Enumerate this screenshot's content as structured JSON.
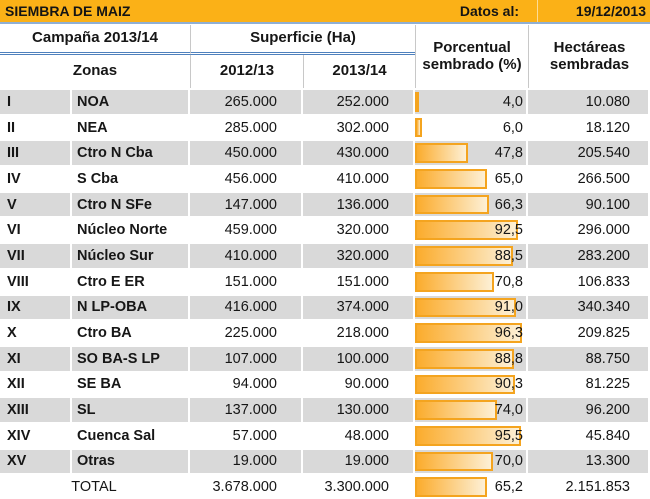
{
  "title_bar": {
    "title": "SIEMBRA DE MAIZ",
    "date_label": "Datos al:",
    "date_value": "19/12/2013"
  },
  "header": {
    "campaign": "Campaña 2013/14",
    "surface": "Superficie (Ha)",
    "pct_planted": "Porcentual sembrado (%)",
    "ha_planted": "Hectáreas sembradas",
    "zones": "Zonas",
    "season_prev": "2012/13",
    "season_curr": "2013/14"
  },
  "rows": [
    {
      "num": "I",
      "zone": "NOA",
      "prev": "265.000",
      "curr": "252.000",
      "pct": "4,0",
      "pct_value": 4.0,
      "ha": "10.080"
    },
    {
      "num": "II",
      "zone": "NEA",
      "prev": "285.000",
      "curr": "302.000",
      "pct": "6,0",
      "pct_value": 6.0,
      "ha": "18.120"
    },
    {
      "num": "III",
      "zone": "Ctro N Cba",
      "prev": "450.000",
      "curr": "430.000",
      "pct": "47,8",
      "pct_value": 47.8,
      "ha": "205.540"
    },
    {
      "num": "IV",
      "zone": "S Cba",
      "prev": "456.000",
      "curr": "410.000",
      "pct": "65,0",
      "pct_value": 65.0,
      "ha": "266.500"
    },
    {
      "num": "V",
      "zone": "Ctro N SFe",
      "prev": "147.000",
      "curr": "136.000",
      "pct": "66,3",
      "pct_value": 66.3,
      "ha": "90.100"
    },
    {
      "num": "VI",
      "zone": "Núcleo Norte",
      "prev": "459.000",
      "curr": "320.000",
      "pct": "92,5",
      "pct_value": 92.5,
      "ha": "296.000"
    },
    {
      "num": "VII",
      "zone": "Núcleo Sur",
      "prev": "410.000",
      "curr": "320.000",
      "pct": "88,5",
      "pct_value": 88.5,
      "ha": "283.200"
    },
    {
      "num": "VIII",
      "zone": "Ctro E ER",
      "prev": "151.000",
      "curr": "151.000",
      "pct": "70,8",
      "pct_value": 70.8,
      "ha": "106.833"
    },
    {
      "num": "IX",
      "zone": "N LP-OBA",
      "prev": "416.000",
      "curr": "374.000",
      "pct": "91,0",
      "pct_value": 91.0,
      "ha": "340.340"
    },
    {
      "num": "X",
      "zone": "Ctro BA",
      "prev": "225.000",
      "curr": "218.000",
      "pct": "96,3",
      "pct_value": 96.3,
      "ha": "209.825"
    },
    {
      "num": "XI",
      "zone": "SO BA-S LP",
      "prev": "107.000",
      "curr": "100.000",
      "pct": "88,8",
      "pct_value": 88.8,
      "ha": "88.750"
    },
    {
      "num": "XII",
      "zone": "SE BA",
      "prev": "94.000",
      "curr": "90.000",
      "pct": "90,3",
      "pct_value": 90.3,
      "ha": "81.225"
    },
    {
      "num": "XIII",
      "zone": "SL",
      "prev": "137.000",
      "curr": "130.000",
      "pct": "74,0",
      "pct_value": 74.0,
      "ha": "96.200"
    },
    {
      "num": "XIV",
      "zone": "Cuenca Sal",
      "prev": "57.000",
      "curr": "48.000",
      "pct": "95,5",
      "pct_value": 95.5,
      "ha": "45.840"
    },
    {
      "num": "XV",
      "zone": "Otras",
      "prev": "19.000",
      "curr": "19.000",
      "pct": "70,0",
      "pct_value": 70.0,
      "ha": "13.300"
    }
  ],
  "total": {
    "label": "TOTAL",
    "prev": "3.678.000",
    "curr": "3.300.000",
    "pct": "65,2",
    "pct_value": 65.2,
    "ha": "2.151.853"
  },
  "colors": {
    "banner_bg": "#FBB117",
    "bar_border": "#F4A41F",
    "bar_start": "#FBAC2D",
    "bar_end": "#FDF0D6",
    "row_alt": "#D9D9D9",
    "line_blue": "#4F81BD",
    "line_blue_light": "#8FAFD4"
  }
}
